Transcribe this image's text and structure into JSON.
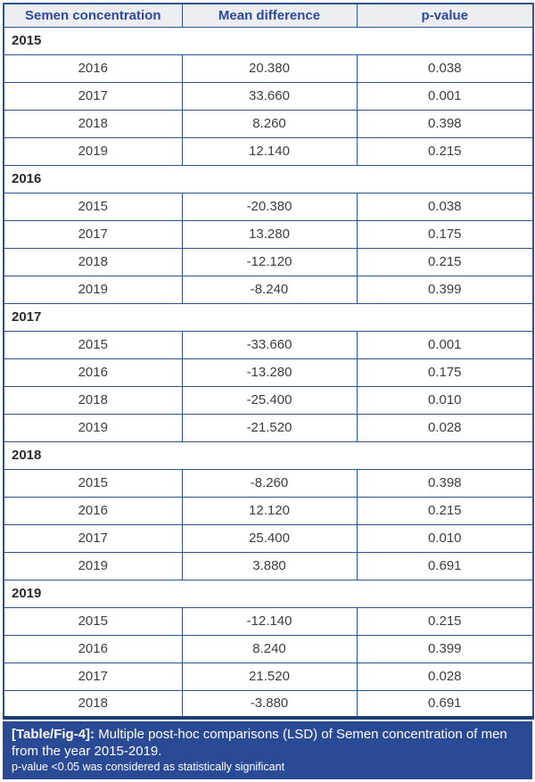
{
  "table": {
    "columns": [
      "Semen concentration",
      "Mean difference",
      "p-value"
    ],
    "groups": [
      {
        "year": "2015",
        "rows": [
          {
            "year": "2016",
            "mean_difference": "20.380",
            "p_value": "0.038"
          },
          {
            "year": "2017",
            "mean_difference": "33.660",
            "p_value": "0.001"
          },
          {
            "year": "2018",
            "mean_difference": "8.260",
            "p_value": "0.398"
          },
          {
            "year": "2019",
            "mean_difference": "12.140",
            "p_value": "0.215"
          }
        ]
      },
      {
        "year": "2016",
        "rows": [
          {
            "year": "2015",
            "mean_difference": "-20.380",
            "p_value": "0.038"
          },
          {
            "year": "2017",
            "mean_difference": "13.280",
            "p_value": "0.175"
          },
          {
            "year": "2018",
            "mean_difference": "-12.120",
            "p_value": "0.215"
          },
          {
            "year": "2019",
            "mean_difference": "-8.240",
            "p_value": "0.399"
          }
        ]
      },
      {
        "year": "2017",
        "rows": [
          {
            "year": "2015",
            "mean_difference": "-33.660",
            "p_value": "0.001"
          },
          {
            "year": "2016",
            "mean_difference": "-13.280",
            "p_value": "0.175"
          },
          {
            "year": "2018",
            "mean_difference": "-25.400",
            "p_value": "0.010"
          },
          {
            "year": "2019",
            "mean_difference": "-21.520",
            "p_value": "0.028"
          }
        ]
      },
      {
        "year": "2018",
        "rows": [
          {
            "year": "2015",
            "mean_difference": "-8.260",
            "p_value": "0.398"
          },
          {
            "year": "2016",
            "mean_difference": "12.120",
            "p_value": "0.215"
          },
          {
            "year": "2017",
            "mean_difference": "25.400",
            "p_value": "0.010"
          },
          {
            "year": "2019",
            "mean_difference": "3.880",
            "p_value": "0.691"
          }
        ]
      },
      {
        "year": "2019",
        "rows": [
          {
            "year": "2015",
            "mean_difference": "-12.140",
            "p_value": "0.215"
          },
          {
            "year": "2016",
            "mean_difference": "8.240",
            "p_value": "0.399"
          },
          {
            "year": "2017",
            "mean_difference": "21.520",
            "p_value": "0.028"
          },
          {
            "year": "2018",
            "mean_difference": "-3.880",
            "p_value": "0.691"
          }
        ]
      }
    ]
  },
  "caption": {
    "label": "[Table/Fig-4]:",
    "text": "Multiple post-hoc comparisons (LSD) of Semen concentration of men from the year 2015-2019.",
    "note": "p-value <0.05 was considered as statistically significant"
  },
  "colors": {
    "border_blue": "#2e5193",
    "border_dark": "#1f3e78",
    "header_bg": "#ededf4",
    "header_text": "#2b4a9e",
    "body_text": "#3d3d3d",
    "caption_bg": "#2a4a96",
    "caption_text": "#ffffff"
  }
}
